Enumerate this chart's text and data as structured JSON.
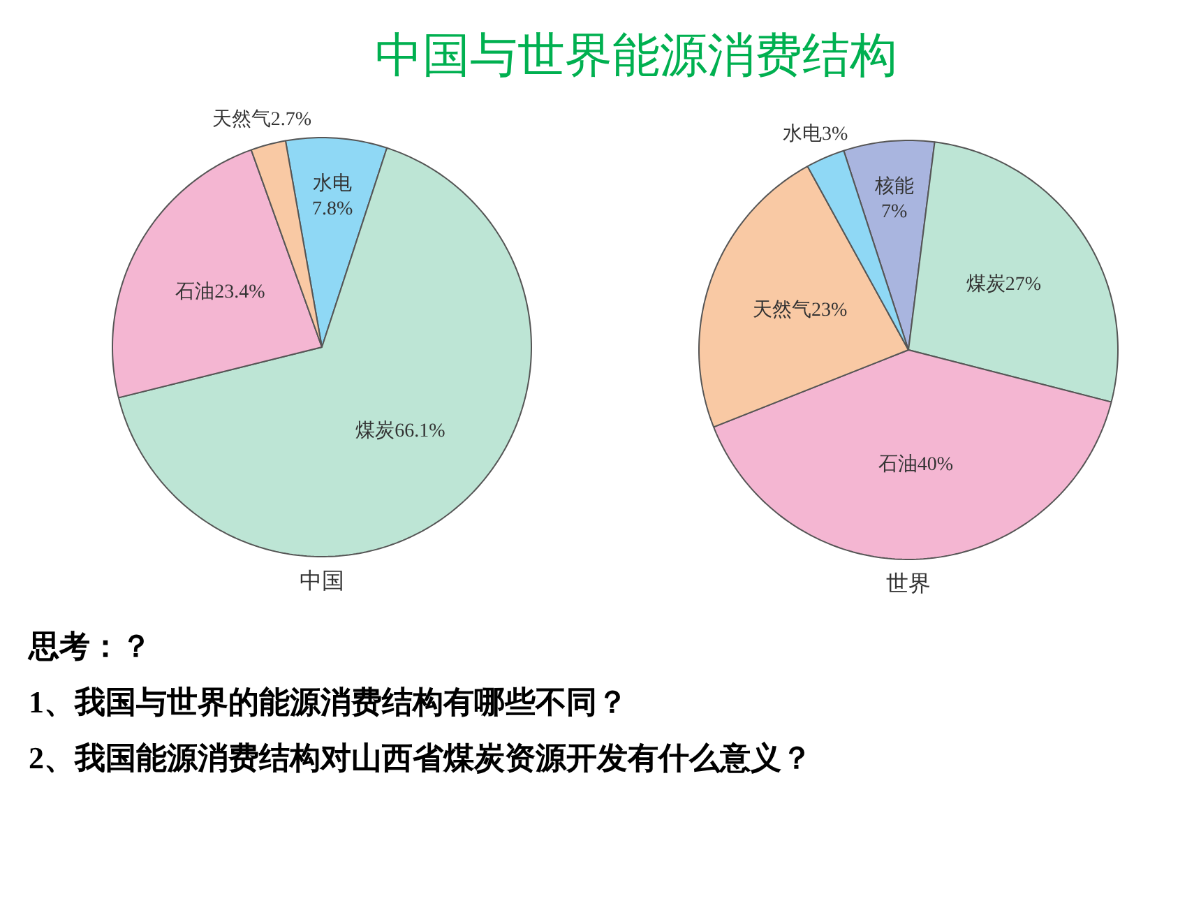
{
  "chart_data": [
    {
      "type": "other",
      "title": "中国与世界能源消费结构"
    },
    {
      "type": "pie",
      "title": "中国",
      "categories": [
        "水电",
        "煤炭",
        "石油",
        "天然气"
      ],
      "values": [
        7.8,
        66.1,
        23.4,
        2.7
      ],
      "colors": [
        "#8fd8f5",
        "#bde5d5",
        "#f4b6d2",
        "#f9c9a4"
      ],
      "value_labels": [
        "7.8%",
        "66.1%",
        "23.4%",
        "2.7%"
      ]
    },
    {
      "type": "pie",
      "title": "世界",
      "categories": [
        "核能",
        "煤炭",
        "石油",
        "天然气",
        "水电"
      ],
      "values": [
        7,
        27,
        40,
        23,
        3
      ],
      "colors": [
        "#a9b5df",
        "#bde5d5",
        "#f4b6d2",
        "#f9c9a4",
        "#8fd8f5"
      ],
      "value_labels": [
        "7%",
        "27%",
        "40%",
        "23%",
        "3%"
      ]
    },
    {
      "type": "other",
      "annotations": [
        "思考：？",
        "1、我国与世界的能源消费结构有哪些不同？",
        "2、我国能源消费结构对山西省煤炭资源开发有什么意义？"
      ]
    }
  ]
}
